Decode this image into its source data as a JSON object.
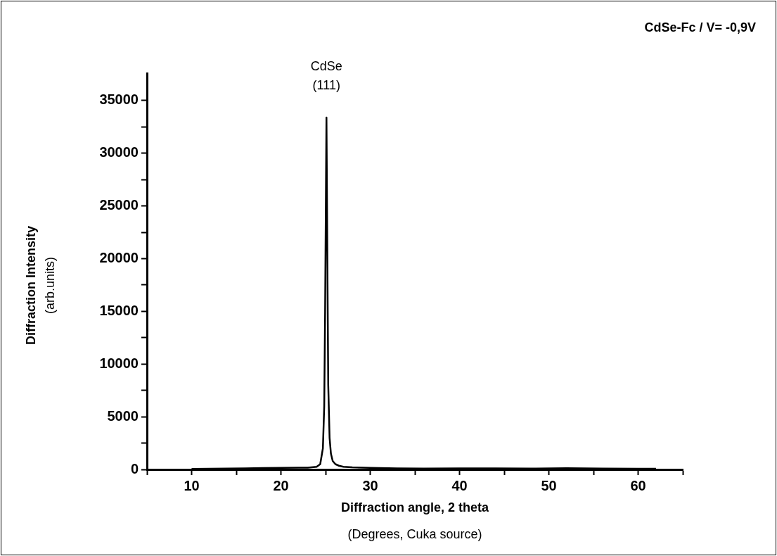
{
  "chart_data": {
    "type": "line",
    "title": "CdSe-Fc / V= -0,9V",
    "xlabel": "Diffraction angle, 2 theta\n(Degrees, Cuka source)",
    "ylabel": "Diffraction Intensity\n(arb.units)",
    "annotations": [
      {
        "text": "CdSe\n(111)",
        "x": 25.1,
        "y": 33400
      }
    ],
    "x": [
      10,
      12,
      14,
      16,
      18,
      20,
      22,
      23,
      24,
      24.4,
      24.7,
      24.85,
      24.95,
      25.1,
      25.2,
      25.3,
      25.45,
      25.6,
      25.8,
      26.1,
      26.5,
      27,
      28,
      30,
      33,
      36,
      40,
      44,
      48,
      52,
      56,
      60,
      62
    ],
    "series": [
      {
        "color": "#000000",
        "values": [
          50,
          60,
          80,
          100,
          130,
          150,
          160,
          170,
          250,
          500,
          2000,
          6000,
          15000,
          33400,
          20000,
          8000,
          3000,
          1500,
          800,
          500,
          350,
          250,
          200,
          150,
          100,
          80,
          100,
          100,
          80,
          120,
          80,
          60,
          60
        ]
      }
    ],
    "xlim": [
      5,
      65
    ],
    "ylim": [
      0,
      37600
    ],
    "xticks": [
      {
        "value": 5,
        "label": null
      },
      10,
      {
        "value": 15,
        "label": null
      },
      20,
      {
        "value": 25,
        "label": null
      },
      30,
      {
        "value": 35,
        "label": null
      },
      40,
      {
        "value": 45,
        "label": null
      },
      50,
      {
        "value": 55,
        "label": null
      },
      60,
      {
        "value": 65,
        "label": null
      }
    ],
    "yticks": [
      0,
      {
        "value": 2500,
        "label": null
      },
      5000,
      {
        "value": 7500,
        "label": null
      },
      10000,
      {
        "value": 12500,
        "label": null
      },
      15000,
      {
        "value": 17500,
        "label": null
      },
      20000,
      {
        "value": 22500,
        "label": null
      },
      25000,
      {
        "value": 27500,
        "label": null
      },
      30000,
      {
        "value": 32500,
        "label": null
      },
      35000
    ],
    "grid": false,
    "legend": false,
    "marker": "none",
    "line_style": "solid"
  }
}
